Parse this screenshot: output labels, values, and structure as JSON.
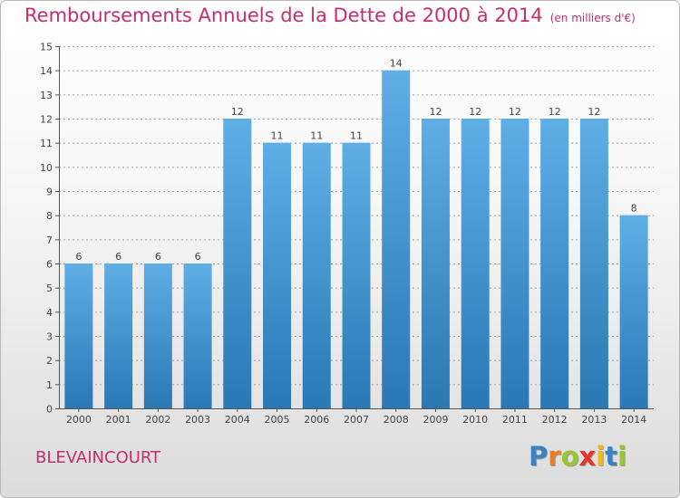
{
  "header": {
    "title": "Remboursements Annuels de la Dette de 2000 à 2014",
    "unit": "(en milliers d'€)"
  },
  "location": {
    "name": "BLEVAINCOURT"
  },
  "brand": {
    "letters": [
      "P",
      "r",
      "o",
      "x",
      "i",
      "t",
      "i"
    ],
    "colors": [
      "#3b82c4",
      "#ef7d1a",
      "#9ac533",
      "#e5362b",
      "#f0b81c",
      "#3b82c4",
      "#9ac533"
    ]
  },
  "colors": {
    "title": "#c42f6b",
    "bar_light": "#5faee6",
    "bar_dark": "#2a78b4",
    "grid": "#a0a0a0"
  },
  "chart_data": {
    "type": "bar",
    "title": "Remboursements Annuels de la Dette de 2000 à 2014",
    "ylabel": "en milliers d'€",
    "xlabel": "",
    "categories": [
      "2000",
      "2001",
      "2002",
      "2003",
      "2004",
      "2005",
      "2006",
      "2007",
      "2008",
      "2009",
      "2010",
      "2011",
      "2012",
      "2013",
      "2014"
    ],
    "values": [
      6,
      6,
      6,
      6,
      12,
      11,
      11,
      11,
      14,
      12,
      12,
      12,
      12,
      12,
      8
    ],
    "ylim": [
      0,
      15
    ],
    "yticks": [
      0,
      1,
      2,
      3,
      4,
      5,
      6,
      7,
      8,
      9,
      10,
      11,
      12,
      13,
      14,
      15
    ],
    "grid": true
  }
}
